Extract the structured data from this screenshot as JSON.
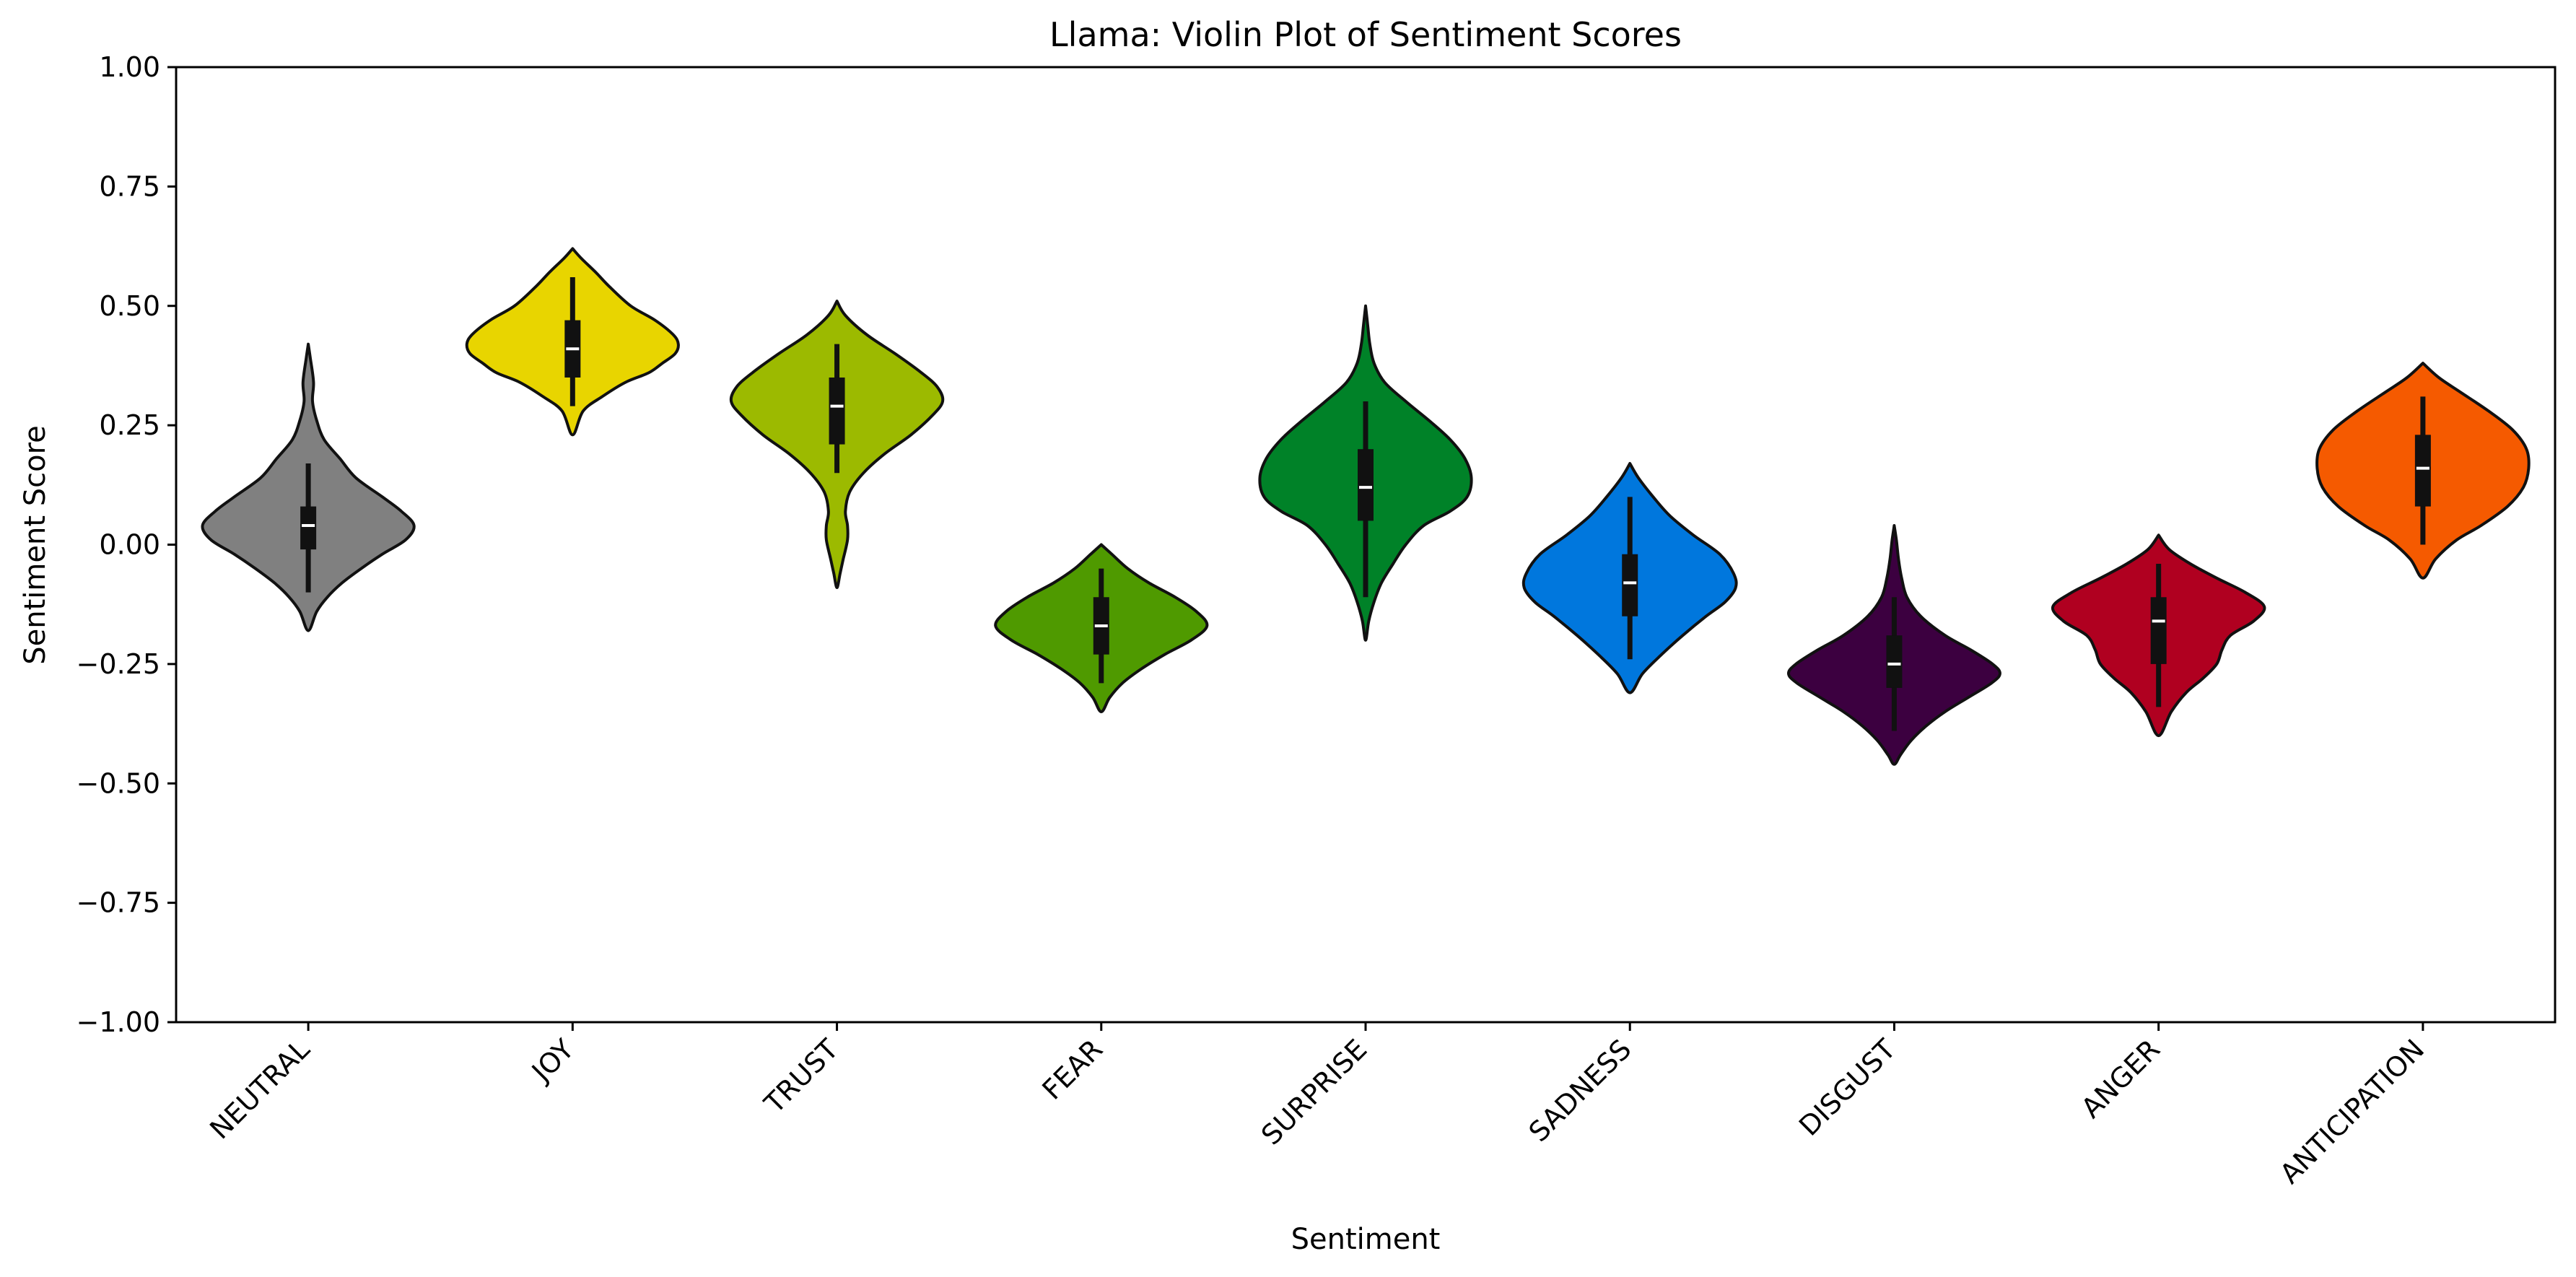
{
  "chart_data": {
    "type": "violin",
    "title": "Llama: Violin Plot of Sentiment Scores",
    "xlabel": "Sentiment",
    "ylabel": "Sentiment Score",
    "ylim": [
      -1.0,
      1.0
    ],
    "yticks": [
      -1.0,
      -0.75,
      -0.5,
      -0.25,
      0.0,
      0.25,
      0.5,
      0.75,
      1.0
    ],
    "ytick_labels": [
      "−1.00",
      "−0.75",
      "−0.50",
      "−0.25",
      "0.00",
      "0.25",
      "0.50",
      "0.75",
      "1.00"
    ],
    "grid": false,
    "legend": "none",
    "categories": [
      "NEUTRAL",
      "JOY",
      "TRUST",
      "FEAR",
      "SURPRISE",
      "SADNESS",
      "DISGUST",
      "ANGER",
      "ANTICIPATION"
    ],
    "series": [
      {
        "category": "NEUTRAL",
        "color": "#808080",
        "min": -0.18,
        "max": 0.42,
        "whisker_low": -0.1,
        "whisker_high": 0.17,
        "q1": -0.01,
        "median": 0.04,
        "q3": 0.08,
        "density": [
          [
            0.42,
            0.0
          ],
          [
            0.39,
            0.02
          ],
          [
            0.34,
            0.05
          ],
          [
            0.3,
            0.04
          ],
          [
            0.26,
            0.08
          ],
          [
            0.22,
            0.15
          ],
          [
            0.18,
            0.3
          ],
          [
            0.14,
            0.45
          ],
          [
            0.1,
            0.7
          ],
          [
            0.07,
            0.88
          ],
          [
            0.04,
            1.0
          ],
          [
            0.01,
            0.92
          ],
          [
            -0.02,
            0.7
          ],
          [
            -0.05,
            0.5
          ],
          [
            -0.08,
            0.32
          ],
          [
            -0.11,
            0.18
          ],
          [
            -0.14,
            0.08
          ],
          [
            -0.18,
            0.0
          ]
        ]
      },
      {
        "category": "JOY",
        "color": "#e8d500",
        "min": 0.23,
        "max": 0.62,
        "whisker_low": 0.29,
        "whisker_high": 0.56,
        "q1": 0.35,
        "median": 0.41,
        "q3": 0.47,
        "density": [
          [
            0.62,
            0.0
          ],
          [
            0.6,
            0.08
          ],
          [
            0.57,
            0.22
          ],
          [
            0.54,
            0.35
          ],
          [
            0.5,
            0.55
          ],
          [
            0.47,
            0.78
          ],
          [
            0.44,
            0.95
          ],
          [
            0.42,
            1.0
          ],
          [
            0.4,
            0.97
          ],
          [
            0.38,
            0.85
          ],
          [
            0.36,
            0.72
          ],
          [
            0.34,
            0.5
          ],
          [
            0.31,
            0.28
          ],
          [
            0.28,
            0.1
          ],
          [
            0.23,
            0.0
          ]
        ]
      },
      {
        "category": "TRUST",
        "color": "#9cba00",
        "min": -0.09,
        "max": 0.51,
        "whisker_low": 0.15,
        "whisker_high": 0.42,
        "q1": 0.21,
        "median": 0.29,
        "q3": 0.35,
        "density": [
          [
            0.51,
            0.0
          ],
          [
            0.48,
            0.08
          ],
          [
            0.44,
            0.28
          ],
          [
            0.4,
            0.55
          ],
          [
            0.36,
            0.8
          ],
          [
            0.33,
            0.95
          ],
          [
            0.3,
            1.0
          ],
          [
            0.27,
            0.9
          ],
          [
            0.23,
            0.7
          ],
          [
            0.19,
            0.45
          ],
          [
            0.15,
            0.25
          ],
          [
            0.11,
            0.12
          ],
          [
            0.07,
            0.08
          ],
          [
            0.04,
            0.1
          ],
          [
            0.01,
            0.1
          ],
          [
            -0.03,
            0.06
          ],
          [
            -0.06,
            0.03
          ],
          [
            -0.09,
            0.0
          ]
        ]
      },
      {
        "category": "FEAR",
        "color": "#4f9a00",
        "min": -0.35,
        "max": 0.0,
        "whisker_low": -0.29,
        "whisker_high": -0.05,
        "q1": -0.23,
        "median": -0.17,
        "q3": -0.11,
        "density": [
          [
            0.0,
            0.0
          ],
          [
            -0.02,
            0.1
          ],
          [
            -0.05,
            0.25
          ],
          [
            -0.08,
            0.45
          ],
          [
            -0.11,
            0.7
          ],
          [
            -0.14,
            0.9
          ],
          [
            -0.17,
            1.0
          ],
          [
            -0.2,
            0.85
          ],
          [
            -0.23,
            0.6
          ],
          [
            -0.26,
            0.38
          ],
          [
            -0.29,
            0.2
          ],
          [
            -0.32,
            0.08
          ],
          [
            -0.35,
            0.0
          ]
        ]
      },
      {
        "category": "SURPRISE",
        "color": "#008228",
        "min": -0.2,
        "max": 0.5,
        "whisker_low": -0.11,
        "whisker_high": 0.3,
        "q1": 0.05,
        "median": 0.12,
        "q3": 0.2,
        "density": [
          [
            0.5,
            0.0
          ],
          [
            0.46,
            0.02
          ],
          [
            0.42,
            0.04
          ],
          [
            0.38,
            0.08
          ],
          [
            0.34,
            0.18
          ],
          [
            0.3,
            0.38
          ],
          [
            0.26,
            0.6
          ],
          [
            0.22,
            0.8
          ],
          [
            0.18,
            0.94
          ],
          [
            0.14,
            1.0
          ],
          [
            0.1,
            0.96
          ],
          [
            0.07,
            0.8
          ],
          [
            0.04,
            0.55
          ],
          [
            0.0,
            0.38
          ],
          [
            -0.04,
            0.26
          ],
          [
            -0.08,
            0.15
          ],
          [
            -0.12,
            0.08
          ],
          [
            -0.16,
            0.03
          ],
          [
            -0.2,
            0.0
          ]
        ]
      },
      {
        "category": "SADNESS",
        "color": "#0077dd",
        "min": -0.31,
        "max": 0.17,
        "whisker_low": -0.24,
        "whisker_high": 0.1,
        "q1": -0.15,
        "median": -0.08,
        "q3": -0.02,
        "density": [
          [
            0.17,
            0.0
          ],
          [
            0.14,
            0.08
          ],
          [
            0.1,
            0.22
          ],
          [
            0.06,
            0.38
          ],
          [
            0.02,
            0.6
          ],
          [
            -0.02,
            0.85
          ],
          [
            -0.06,
            0.98
          ],
          [
            -0.09,
            1.0
          ],
          [
            -0.12,
            0.9
          ],
          [
            -0.15,
            0.72
          ],
          [
            -0.19,
            0.5
          ],
          [
            -0.23,
            0.3
          ],
          [
            -0.27,
            0.12
          ],
          [
            -0.31,
            0.0
          ]
        ]
      },
      {
        "category": "DISGUST",
        "color": "#3c0040",
        "min": -0.46,
        "max": 0.04,
        "whisker_low": -0.39,
        "whisker_high": -0.11,
        "q1": -0.3,
        "median": -0.25,
        "q3": -0.19,
        "density": [
          [
            0.04,
            0.0
          ],
          [
            0.01,
            0.02
          ],
          [
            -0.03,
            0.04
          ],
          [
            -0.07,
            0.07
          ],
          [
            -0.11,
            0.12
          ],
          [
            -0.15,
            0.25
          ],
          [
            -0.19,
            0.48
          ],
          [
            -0.22,
            0.72
          ],
          [
            -0.25,
            0.93
          ],
          [
            -0.27,
            1.0
          ],
          [
            -0.29,
            0.92
          ],
          [
            -0.32,
            0.7
          ],
          [
            -0.35,
            0.48
          ],
          [
            -0.38,
            0.3
          ],
          [
            -0.41,
            0.16
          ],
          [
            -0.44,
            0.06
          ],
          [
            -0.46,
            0.0
          ]
        ]
      },
      {
        "category": "ANGER",
        "color": "#b00020",
        "min": -0.4,
        "max": 0.02,
        "whisker_low": -0.34,
        "whisker_high": -0.04,
        "q1": -0.25,
        "median": -0.16,
        "q3": -0.11,
        "density": [
          [
            0.02,
            0.0
          ],
          [
            -0.01,
            0.1
          ],
          [
            -0.04,
            0.3
          ],
          [
            -0.07,
            0.55
          ],
          [
            -0.1,
            0.82
          ],
          [
            -0.13,
            1.0
          ],
          [
            -0.16,
            0.9
          ],
          [
            -0.19,
            0.68
          ],
          [
            -0.22,
            0.6
          ],
          [
            -0.25,
            0.55
          ],
          [
            -0.28,
            0.42
          ],
          [
            -0.31,
            0.26
          ],
          [
            -0.35,
            0.12
          ],
          [
            -0.4,
            0.0
          ]
        ]
      },
      {
        "category": "ANTICIPATION",
        "color": "#f55a00",
        "min": -0.07,
        "max": 0.38,
        "whisker_low": 0.0,
        "whisker_high": 0.31,
        "q1": 0.08,
        "median": 0.16,
        "q3": 0.23,
        "density": [
          [
            0.38,
            0.0
          ],
          [
            0.35,
            0.15
          ],
          [
            0.32,
            0.35
          ],
          [
            0.28,
            0.62
          ],
          [
            0.24,
            0.85
          ],
          [
            0.2,
            0.98
          ],
          [
            0.16,
            1.0
          ],
          [
            0.12,
            0.95
          ],
          [
            0.08,
            0.8
          ],
          [
            0.04,
            0.55
          ],
          [
            0.01,
            0.32
          ],
          [
            -0.03,
            0.12
          ],
          [
            -0.07,
            0.0
          ]
        ]
      }
    ]
  }
}
